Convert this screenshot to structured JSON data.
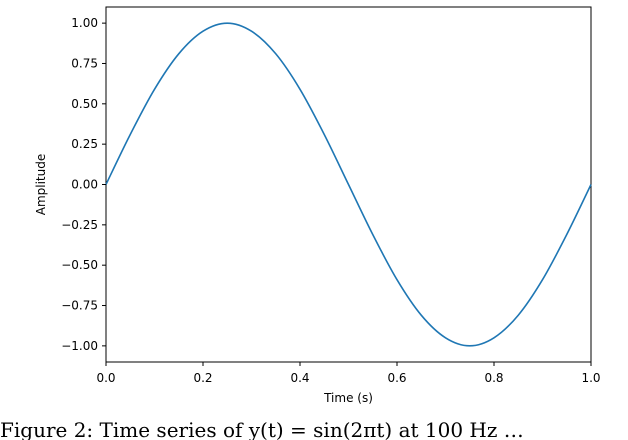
{
  "chart_data": {
    "type": "line",
    "xlabel": "Time (s)",
    "ylabel": "Amplitude",
    "xlim": [
      0.0,
      1.0
    ],
    "ylim": [
      -1.1,
      1.1
    ],
    "x_ticks": [
      "0.0",
      "0.2",
      "0.4",
      "0.6",
      "0.8",
      "1.0"
    ],
    "y_ticks": [
      "1.00",
      "0.75",
      "0.50",
      "0.25",
      "0.00",
      "−0.25",
      "−0.50",
      "−0.75",
      "−1.00"
    ],
    "grid": false,
    "line_color": "#1f77b4",
    "series": [
      {
        "x": [
          0.0,
          0.05,
          0.1,
          0.15,
          0.2,
          0.25,
          0.3,
          0.35,
          0.4,
          0.45,
          0.5,
          0.55,
          0.6,
          0.65,
          0.7,
          0.75,
          0.8,
          0.85,
          0.9,
          0.95,
          1.0
        ],
        "values": [
          0.0,
          0.31,
          0.59,
          0.81,
          0.95,
          1.0,
          0.95,
          0.81,
          0.59,
          0.31,
          0.0,
          -0.31,
          -0.59,
          -0.81,
          -0.95,
          -1.0,
          -0.95,
          -0.81,
          -0.59,
          -0.31,
          0.0
        ]
      }
    ]
  },
  "caption": "Figure 2: Time series of y(t) = sin(2πt) at 100 Hz …"
}
